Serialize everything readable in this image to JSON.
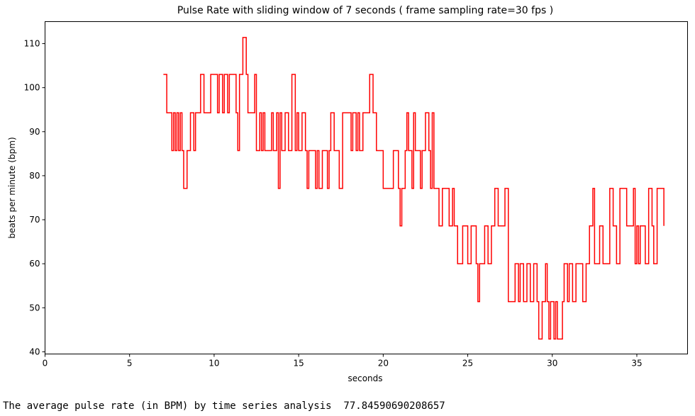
{
  "chart_data": {
    "type": "line",
    "title": "Pulse Rate with sliding window of 7 seconds  ( frame sampling rate=30 fps )",
    "xlabel": "seconds",
    "ylabel": "beats per minute (bpm)",
    "xlim": [
      0,
      38
    ],
    "ylim": [
      39.5,
      115
    ],
    "xticks": [
      0,
      5,
      10,
      15,
      20,
      25,
      30,
      35
    ],
    "yticks": [
      40,
      50,
      60,
      70,
      80,
      90,
      100,
      110
    ],
    "grid": false,
    "series": [
      {
        "color": "#ff0000",
        "points": [
          [
            7.0,
            103
          ],
          [
            7.2,
            94.3
          ],
          [
            7.5,
            85.7
          ],
          [
            7.6,
            94.3
          ],
          [
            7.7,
            85.7
          ],
          [
            7.8,
            94.3
          ],
          [
            7.9,
            85.7
          ],
          [
            8.0,
            94.3
          ],
          [
            8.1,
            85.7
          ],
          [
            8.2,
            77.1
          ],
          [
            8.4,
            85.7
          ],
          [
            8.6,
            94.3
          ],
          [
            8.8,
            85.7
          ],
          [
            8.9,
            94.3
          ],
          [
            9.2,
            103
          ],
          [
            9.4,
            94.3
          ],
          [
            9.8,
            103
          ],
          [
            10.2,
            94.3
          ],
          [
            10.3,
            103
          ],
          [
            10.5,
            94.3
          ],
          [
            10.6,
            103
          ],
          [
            10.8,
            94.3
          ],
          [
            10.9,
            103
          ],
          [
            11.3,
            94.3
          ],
          [
            11.4,
            85.7
          ],
          [
            11.5,
            103
          ],
          [
            11.7,
            111.4
          ],
          [
            11.9,
            103
          ],
          [
            12.0,
            94.3
          ],
          [
            12.4,
            103
          ],
          [
            12.5,
            85.7
          ],
          [
            12.7,
            94.3
          ],
          [
            12.8,
            85.7
          ],
          [
            12.9,
            94.3
          ],
          [
            13.0,
            85.7
          ],
          [
            13.4,
            94.3
          ],
          [
            13.5,
            85.7
          ],
          [
            13.7,
            94.3
          ],
          [
            13.8,
            77.1
          ],
          [
            13.9,
            94.3
          ],
          [
            14.0,
            85.7
          ],
          [
            14.2,
            94.3
          ],
          [
            14.4,
            85.7
          ],
          [
            14.6,
            103
          ],
          [
            14.8,
            85.7
          ],
          [
            14.9,
            94.3
          ],
          [
            15.0,
            85.7
          ],
          [
            15.2,
            94.3
          ],
          [
            15.4,
            85.7
          ],
          [
            15.5,
            77.1
          ],
          [
            15.6,
            85.7
          ],
          [
            16.0,
            77.1
          ],
          [
            16.1,
            85.7
          ],
          [
            16.2,
            77.1
          ],
          [
            16.4,
            85.7
          ],
          [
            16.7,
            77.1
          ],
          [
            16.8,
            85.7
          ],
          [
            16.9,
            94.3
          ],
          [
            17.1,
            85.7
          ],
          [
            17.4,
            77.1
          ],
          [
            17.6,
            94.3
          ],
          [
            18.1,
            85.7
          ],
          [
            18.2,
            94.3
          ],
          [
            18.4,
            85.7
          ],
          [
            18.5,
            94.3
          ],
          [
            18.6,
            85.7
          ],
          [
            18.8,
            94.3
          ],
          [
            19.2,
            103
          ],
          [
            19.4,
            94.3
          ],
          [
            19.6,
            85.7
          ],
          [
            20.0,
            77.1
          ],
          [
            20.6,
            85.7
          ],
          [
            20.9,
            77.1
          ],
          [
            21.0,
            68.6
          ],
          [
            21.1,
            77.1
          ],
          [
            21.3,
            85.7
          ],
          [
            21.4,
            94.3
          ],
          [
            21.5,
            85.7
          ],
          [
            21.7,
            77.1
          ],
          [
            21.8,
            94.3
          ],
          [
            21.9,
            85.7
          ],
          [
            22.2,
            77.1
          ],
          [
            22.3,
            85.7
          ],
          [
            22.5,
            94.3
          ],
          [
            22.7,
            85.7
          ],
          [
            22.8,
            77.1
          ],
          [
            22.9,
            94.3
          ],
          [
            23.0,
            77.1
          ],
          [
            23.3,
            68.6
          ],
          [
            23.5,
            77.1
          ],
          [
            23.9,
            68.6
          ],
          [
            24.1,
            77.1
          ],
          [
            24.2,
            68.6
          ],
          [
            24.4,
            60
          ],
          [
            24.7,
            68.6
          ],
          [
            25.0,
            60
          ],
          [
            25.2,
            68.6
          ],
          [
            25.5,
            60
          ],
          [
            25.6,
            51.4
          ],
          [
            25.7,
            60
          ],
          [
            26.0,
            68.6
          ],
          [
            26.2,
            60
          ],
          [
            26.4,
            68.6
          ],
          [
            26.6,
            77.1
          ],
          [
            26.8,
            68.6
          ],
          [
            27.2,
            77.1
          ],
          [
            27.4,
            51.4
          ],
          [
            27.8,
            60
          ],
          [
            28.0,
            51.4
          ],
          [
            28.1,
            60
          ],
          [
            28.3,
            51.4
          ],
          [
            28.5,
            60
          ],
          [
            28.7,
            51.4
          ],
          [
            28.9,
            60
          ],
          [
            29.1,
            51.4
          ],
          [
            29.2,
            42.9
          ],
          [
            29.4,
            51.4
          ],
          [
            29.6,
            60
          ],
          [
            29.7,
            51.4
          ],
          [
            29.8,
            42.9
          ],
          [
            29.9,
            51.4
          ],
          [
            30.1,
            42.9
          ],
          [
            30.2,
            51.4
          ],
          [
            30.3,
            42.9
          ],
          [
            30.6,
            51.4
          ],
          [
            30.7,
            60
          ],
          [
            30.9,
            51.4
          ],
          [
            31.0,
            60
          ],
          [
            31.2,
            51.4
          ],
          [
            31.4,
            60
          ],
          [
            31.8,
            51.4
          ],
          [
            32.0,
            60
          ],
          [
            32.2,
            68.6
          ],
          [
            32.4,
            77.1
          ],
          [
            32.5,
            60
          ],
          [
            32.8,
            68.6
          ],
          [
            33.0,
            60
          ],
          [
            33.4,
            77.1
          ],
          [
            33.6,
            68.6
          ],
          [
            33.8,
            60
          ],
          [
            34.0,
            77.1
          ],
          [
            34.4,
            68.6
          ],
          [
            34.8,
            77.1
          ],
          [
            34.9,
            60
          ],
          [
            35.0,
            68.6
          ],
          [
            35.1,
            60
          ],
          [
            35.2,
            68.6
          ],
          [
            35.5,
            60
          ],
          [
            35.7,
            77.1
          ],
          [
            35.9,
            68.6
          ],
          [
            36.0,
            60
          ],
          [
            36.2,
            77.1
          ],
          [
            36.6,
            68.6
          ]
        ]
      }
    ]
  },
  "output_text": "The average pulse rate (in BPM) by time series analysis  77.84590690208657"
}
